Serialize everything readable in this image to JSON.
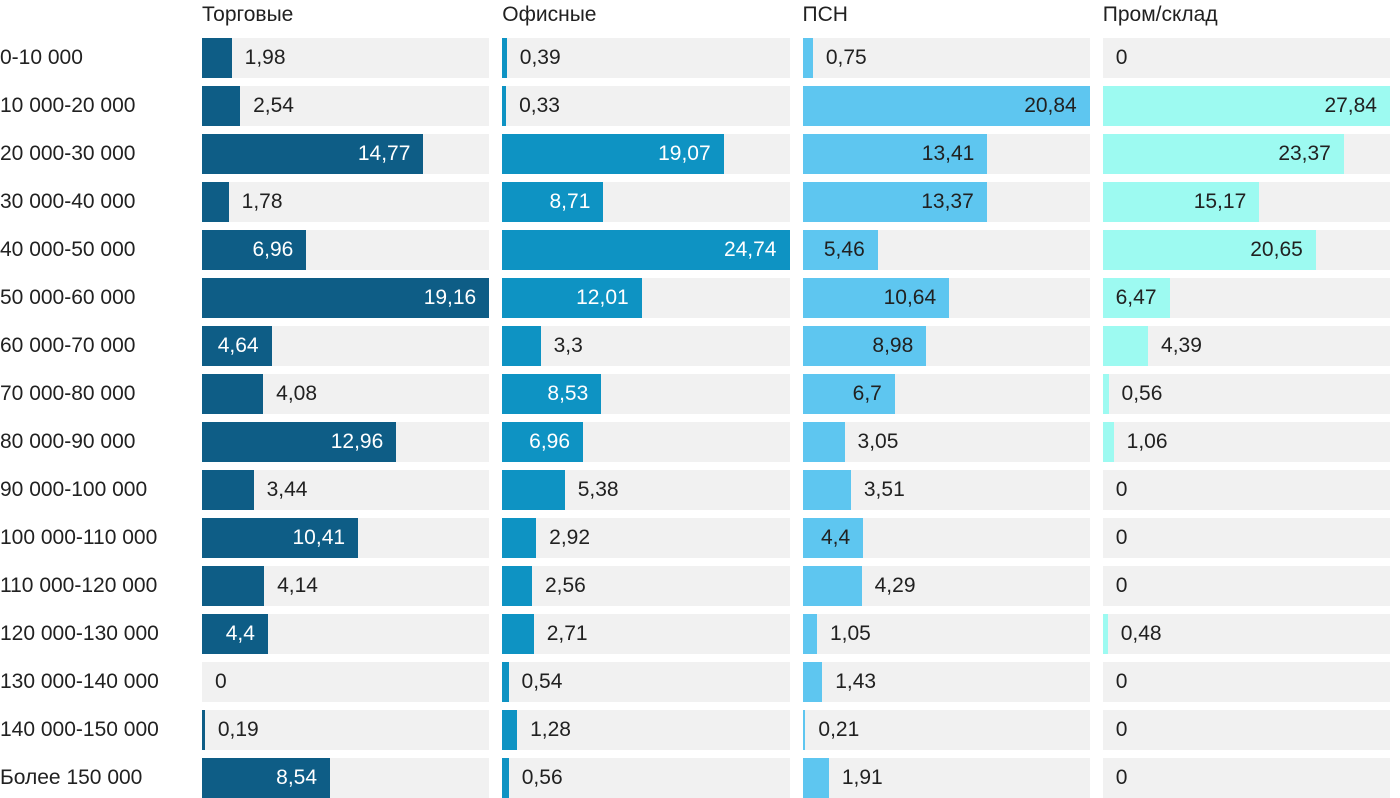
{
  "chart_data": {
    "type": "bar",
    "orientation": "horizontal",
    "title": "",
    "background": "#FFFFFF",
    "track_color": "#F1F1F1",
    "text_color": "#212121",
    "grid": false,
    "legend_position": "column-headers-top",
    "value_format": "decimal-comma",
    "categories": [
      "0-10 000",
      "10 000-20 000",
      "20 000-30 000",
      "30 000-40 000",
      "40 000-50 000",
      "50 000-60 000",
      "60 000-70 000",
      "70 000-80 000",
      "80 000-90 000",
      "90 000-100 000",
      "100 000-110 000",
      "110 000-120 000",
      "120 000-130 000",
      "130 000-140 000",
      "140 000-150 000",
      "Более 150 000"
    ],
    "series": [
      {
        "name": "Торговые",
        "color": "#0E5D86",
        "inside_label_color": "#FFFFFF",
        "xlim": [
          0,
          19.16
        ],
        "values": [
          1.98,
          2.54,
          14.77,
          1.78,
          6.96,
          19.16,
          4.64,
          4.08,
          12.96,
          3.44,
          10.41,
          4.14,
          4.4,
          0,
          0.19,
          8.54
        ],
        "labels": [
          "1,98",
          "2,54",
          "14,77",
          "1,78",
          "6,96",
          "19,16",
          "4,64",
          "4,08",
          "12,96",
          "3,44",
          "10,41",
          "4,14",
          "4,4",
          "0",
          "0,19",
          "8,54"
        ]
      },
      {
        "name": "Офисные",
        "color": "#0E93C3",
        "inside_label_color": "#FFFFFF",
        "xlim": [
          0,
          24.74
        ],
        "values": [
          0.39,
          0.33,
          19.07,
          8.71,
          24.74,
          12.01,
          3.3,
          8.53,
          6.96,
          5.38,
          2.92,
          2.56,
          2.71,
          0.54,
          1.28,
          0.56
        ],
        "labels": [
          "0,39",
          "0,33",
          "19,07",
          "8,71",
          "24,74",
          "12,01",
          "3,3",
          "8,53",
          "6,96",
          "5,38",
          "2,92",
          "2,56",
          "2,71",
          "0,54",
          "1,28",
          "0,56"
        ]
      },
      {
        "name": "ПСН",
        "color": "#5EC6F0",
        "inside_label_color": "#212121",
        "xlim": [
          0,
          20.84
        ],
        "values": [
          0.75,
          20.84,
          13.41,
          13.37,
          5.46,
          10.64,
          8.98,
          6.7,
          3.05,
          3.51,
          4.4,
          4.29,
          1.05,
          1.43,
          0.21,
          1.91
        ],
        "labels": [
          "0,75",
          "20,84",
          "13,41",
          "13,37",
          "5,46",
          "10,64",
          "8,98",
          "6,7",
          "3,05",
          "3,51",
          "4,4",
          "4,29",
          "1,05",
          "1,43",
          "0,21",
          "1,91"
        ]
      },
      {
        "name": "Пром/склад",
        "color": "#9DFAF1",
        "inside_label_color": "#212121",
        "xlim": [
          0,
          27.84
        ],
        "values": [
          0,
          27.84,
          23.37,
          15.17,
          20.65,
          6.47,
          4.39,
          0.56,
          1.06,
          0,
          0,
          0,
          0.48,
          0,
          0,
          0
        ],
        "labels": [
          "0",
          "27,84",
          "23,37",
          "15,17",
          "20,65",
          "6,47",
          "4,39",
          "0,56",
          "1,06",
          "0",
          "0",
          "0",
          "0,48",
          "0",
          "0",
          "0"
        ]
      }
    ]
  }
}
